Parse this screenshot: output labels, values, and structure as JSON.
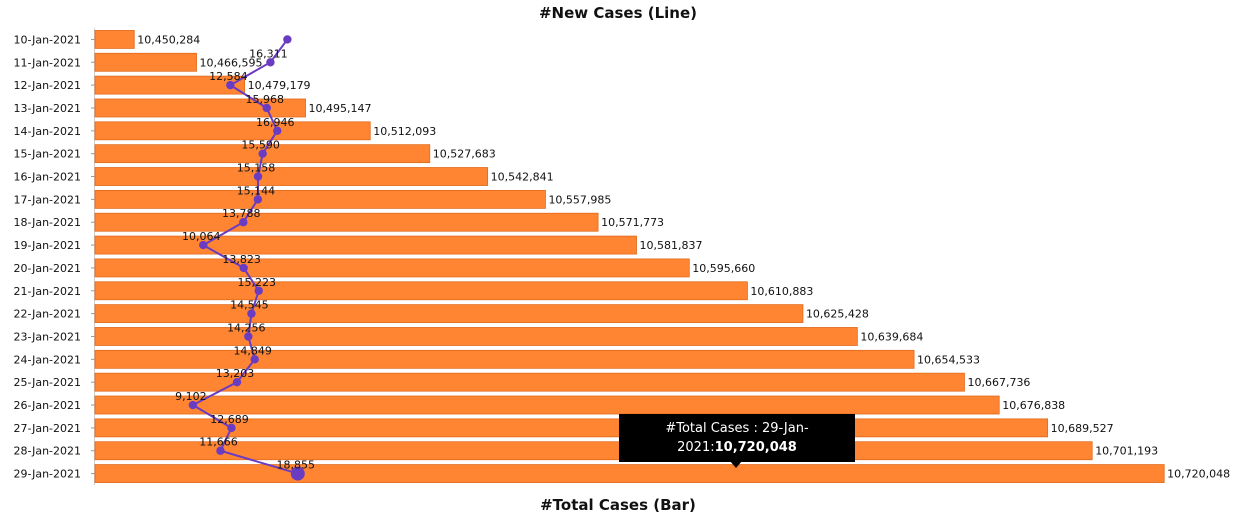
{
  "titles": {
    "line": "#New Cases (Line)",
    "bar": "#Total Cases (Bar)"
  },
  "tooltip": {
    "label": "#Total Cases : 29-Jan-2021:",
    "value": "10,720,048"
  },
  "colors": {
    "bar": "#FF8533",
    "bar_border": "#E06A1B",
    "line": "#6A3CC1",
    "marker": "#6A3CC1",
    "tooltip_bg": "#000000"
  },
  "chart_data": {
    "type": "bar",
    "orientation": "horizontal",
    "categories": [
      "10-Jan-2021",
      "11-Jan-2021",
      "12-Jan-2021",
      "13-Jan-2021",
      "14-Jan-2021",
      "15-Jan-2021",
      "16-Jan-2021",
      "17-Jan-2021",
      "18-Jan-2021",
      "19-Jan-2021",
      "20-Jan-2021",
      "21-Jan-2021",
      "22-Jan-2021",
      "23-Jan-2021",
      "24-Jan-2021",
      "25-Jan-2021",
      "26-Jan-2021",
      "27-Jan-2021",
      "28-Jan-2021",
      "29-Jan-2021"
    ],
    "series": [
      {
        "name": "#Total Cases (Bar)",
        "type": "bar",
        "values": [
          10450284,
          10466595,
          10479179,
          10495147,
          10512093,
          10527683,
          10542841,
          10557985,
          10571773,
          10581837,
          10595660,
          10610883,
          10625428,
          10639684,
          10654533,
          10667736,
          10676838,
          10689527,
          10701193,
          10720048
        ],
        "labels": [
          "10,450,284",
          "10,466,595",
          "10,479,179",
          "10,495,147",
          "10,512,093",
          "10,527,683",
          "10,542,841",
          "10,557,985",
          "10,571,773",
          "10,581,837",
          "10,595,660",
          "10,610,883",
          "10,625,428",
          "10,639,684",
          "10,654,533",
          "10,667,736",
          "10,676,838",
          "10,689,527",
          "10,701,193",
          "10,720,048"
        ]
      },
      {
        "name": "#New Cases (Line)",
        "type": "line",
        "values": [
          null,
          16311,
          12584,
          15968,
          16946,
          15590,
          15158,
          15144,
          13788,
          10064,
          13823,
          15223,
          14545,
          14256,
          14849,
          13203,
          9102,
          12689,
          11666,
          18855
        ],
        "labels": [
          "",
          "16,311",
          "12,584",
          "15,968",
          "16,946",
          "15,590",
          "15,158",
          "15,144",
          "13,788",
          "10,064",
          "13,823",
          "15,223",
          "14,545",
          "14,256",
          "14,849",
          "13,203",
          "9,102",
          "12,689",
          "11,666",
          "18,855"
        ]
      }
    ],
    "bar_axis_range": [
      10440000,
      10720000
    ],
    "line_axis_range": [
      0,
      26500
    ],
    "grid": false,
    "legend": "none"
  }
}
